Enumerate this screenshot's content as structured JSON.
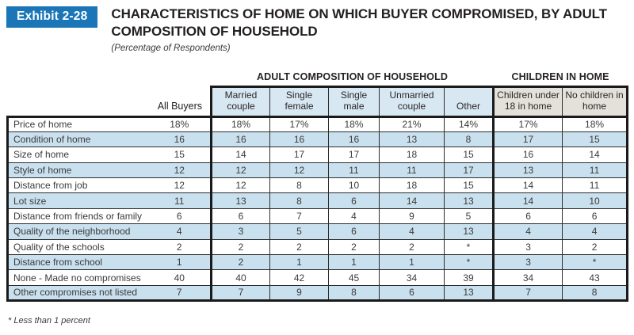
{
  "exhibit": {
    "badge": "Exhibit 2-28",
    "title": "CHARACTERISTICS OF HOME ON WHICH BUYER COMPROMISED, BY ADULT COMPOSITION OF HOUSEHOLD",
    "subtitle": "(Percentage of Respondents)"
  },
  "table": {
    "group_headers": [
      "ADULT COMPOSITION OF HOUSEHOLD",
      "CHILDREN IN HOME"
    ],
    "columns": [
      "All Buyers",
      "Married couple",
      "Single female",
      "Single male",
      "Unmarried couple",
      "Other",
      "Children under 18 in home",
      "No children in home"
    ],
    "rows": [
      {
        "label": "Price of home",
        "values": [
          "18%",
          "18%",
          "17%",
          "18%",
          "21%",
          "14%",
          "17%",
          "18%"
        ]
      },
      {
        "label": "Condition of home",
        "values": [
          "16",
          "16",
          "16",
          "16",
          "13",
          "8",
          "17",
          "15"
        ]
      },
      {
        "label": "Size of home",
        "values": [
          "15",
          "14",
          "17",
          "17",
          "18",
          "15",
          "16",
          "14"
        ]
      },
      {
        "label": "Style of home",
        "values": [
          "12",
          "12",
          "12",
          "11",
          "11",
          "17",
          "13",
          "11"
        ]
      },
      {
        "label": "Distance from job",
        "values": [
          "12",
          "12",
          "8",
          "10",
          "18",
          "15",
          "14",
          "11"
        ]
      },
      {
        "label": "Lot size",
        "values": [
          "11",
          "13",
          "8",
          "6",
          "14",
          "13",
          "14",
          "10"
        ]
      },
      {
        "label": "Distance from friends or family",
        "values": [
          "6",
          "6",
          "7",
          "4",
          "9",
          "5",
          "6",
          "6"
        ]
      },
      {
        "label": "Quality of the neighborhood",
        "values": [
          "4",
          "3",
          "5",
          "6",
          "4",
          "13",
          "4",
          "4"
        ]
      },
      {
        "label": "Quality of the schools",
        "values": [
          "2",
          "2",
          "2",
          "2",
          "2",
          "*",
          "3",
          "2"
        ]
      },
      {
        "label": "Distance from school",
        "values": [
          "1",
          "2",
          "1",
          "1",
          "1",
          "*",
          "3",
          "*"
        ]
      },
      {
        "label": "None - Made no compromises",
        "values": [
          "40",
          "40",
          "42",
          "45",
          "34",
          "39",
          "34",
          "43"
        ]
      },
      {
        "label": "Other compromises not listed",
        "values": [
          "7",
          "7",
          "9",
          "8",
          "6",
          "13",
          "7",
          "8"
        ]
      }
    ],
    "footnote": "* Less than 1 percent"
  },
  "colors": {
    "badge-bg": "#1b76b8",
    "badge-text": "#ffffff",
    "stripe-blue": "#c9e0ee",
    "header-blue": "#d8e8f3",
    "header-gray": "#e4e1db",
    "border-dark": "#1a1a1a",
    "border-thin": "#2d2d2d",
    "text-dark": "#231f20",
    "text-body": "#3b3b3b"
  }
}
